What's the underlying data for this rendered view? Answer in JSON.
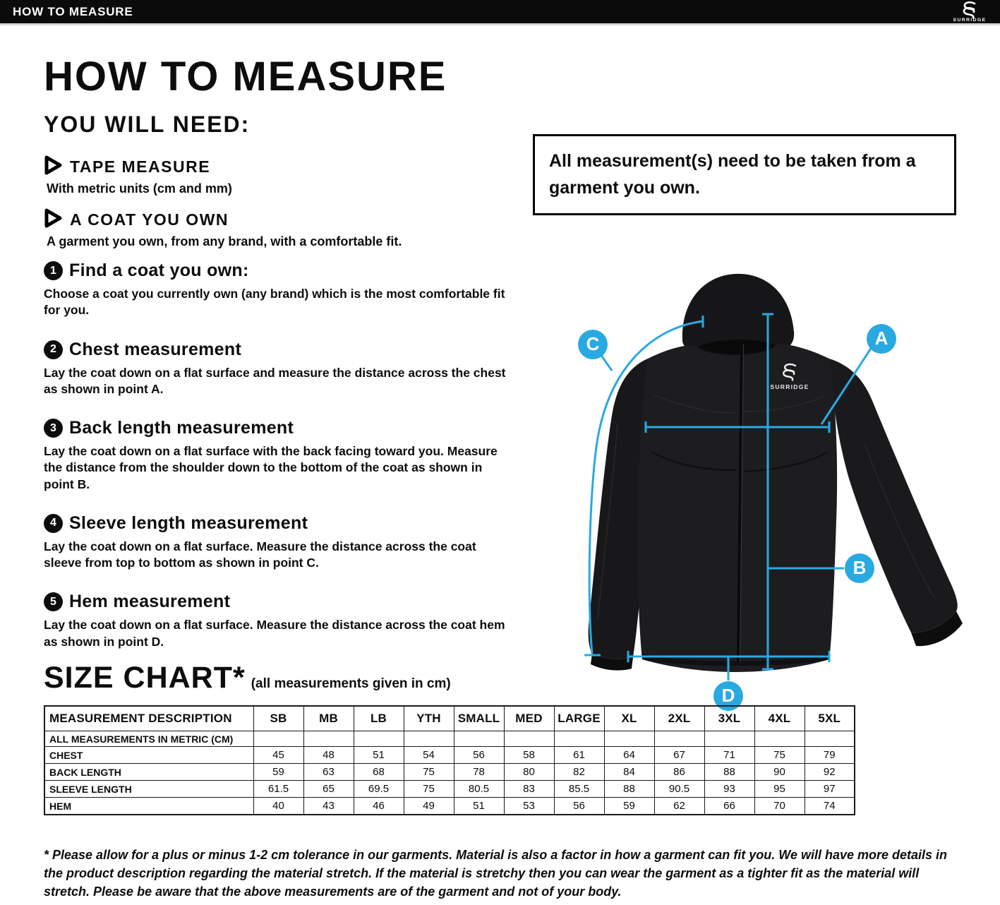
{
  "top_bar": {
    "title": "HOW TO MEASURE",
    "brand": "SURRIDGE"
  },
  "header": {
    "title": "HOW TO MEASURE",
    "subtitle": "YOU WILL NEED:"
  },
  "requirements": [
    {
      "label": "TAPE MEASURE",
      "description": "With metric units (cm and mm)"
    },
    {
      "label": "A COAT YOU OWN",
      "description": "A garment you own, from any brand, with a comfortable fit."
    }
  ],
  "steps": [
    {
      "number": "1",
      "title": "Find a coat you own:",
      "description": "Choose a coat you currently own (any brand) which is the most comfortable fit for you."
    },
    {
      "number": "2",
      "title": "Chest measurement",
      "description": "Lay the coat down on a flat surface and measure the distance across the chest as shown in point A."
    },
    {
      "number": "3",
      "title": "Back length measurement",
      "description": "Lay the coat down on a flat surface with the back facing toward you. Measure the distance from the shoulder down to the bottom of the coat as shown in point B."
    },
    {
      "number": "4",
      "title": "Sleeve length measurement",
      "description": "Lay the coat down on a flat surface. Measure the distance across the coat sleeve from top to bottom as shown in point C."
    },
    {
      "number": "5",
      "title": "Hem measurement",
      "description": "Lay the coat down on a flat surface. Measure the distance across the coat hem as shown in point D."
    }
  ],
  "notice_box": {
    "text": "All measurement(s) need to be taken from a garment you own."
  },
  "diagram": {
    "brand": "SURRIDGE",
    "markers": [
      "A",
      "B",
      "C",
      "D"
    ],
    "accent_color": "#29A9E1"
  },
  "size_chart": {
    "title": "SIZE CHART*",
    "subtitle": "(all measurements given in cm)",
    "metric_note": "ALL MEASUREMENTS IN METRIC (CM)",
    "columns": [
      "MEASUREMENT DESCRIPTION",
      "SB",
      "MB",
      "LB",
      "YTH",
      "SMALL",
      "MED",
      "LARGE",
      "XL",
      "2XL",
      "3XL",
      "4XL",
      "5XL"
    ],
    "rows": [
      {
        "label": "CHEST",
        "values": [
          "45",
          "48",
          "51",
          "54",
          "56",
          "58",
          "61",
          "64",
          "67",
          "71",
          "75",
          "79"
        ]
      },
      {
        "label": "BACK LENGTH",
        "values": [
          "59",
          "63",
          "68",
          "75",
          "78",
          "80",
          "82",
          "84",
          "86",
          "88",
          "90",
          "92"
        ]
      },
      {
        "label": "SLEEVE LENGTH",
        "values": [
          "61.5",
          "65",
          "69.5",
          "75",
          "80.5",
          "83",
          "85.5",
          "88",
          "90.5",
          "93",
          "95",
          "97"
        ]
      },
      {
        "label": "HEM",
        "values": [
          "40",
          "43",
          "46",
          "49",
          "51",
          "53",
          "56",
          "59",
          "62",
          "66",
          "70",
          "74"
        ]
      }
    ]
  },
  "footnote": "* Please allow for a plus or minus 1-2 cm tolerance in our garments. Material is also a factor in how a garment can fit you. We will have more details in the product description regarding the material stretch.  If the material is stretchy then you can wear the garment as a tighter fit as the material will stretch.  Please be aware that the above measurements are of the garment and not of your body."
}
